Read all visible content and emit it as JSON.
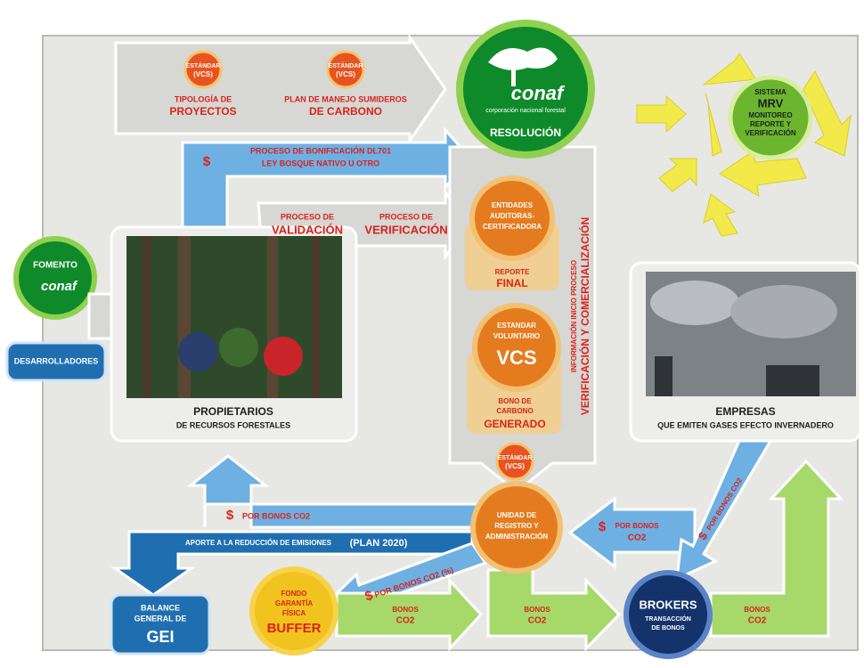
{
  "badges": [
    {
      "line1": "ESTÁNDAR",
      "line2": "(VCS)"
    },
    {
      "line1": "ESTÁNDAR",
      "line2": "(VCS)"
    },
    {
      "line1": "ESTÁNDAR",
      "line2": "(VCS)"
    }
  ],
  "top_arrow": {
    "item1": [
      "TIPOLOGÍA DE",
      "PROYECTOS"
    ],
    "item2": [
      "PLAN DE MANEJO SUMIDEROS",
      "DE CARBONO"
    ]
  },
  "conaf": {
    "logo": "conaf",
    "tagline": "corporación nacional forestal",
    "label": "RESOLUCIÓN"
  },
  "bonificacion": {
    "currency": "$",
    "lines": [
      "PROCESO DE BONIFICACIÓN DL701",
      "LEY BOSQUE NATIVO U OTRO"
    ]
  },
  "validacion": {
    "line1": "PROCESO DE",
    "line2": "VALIDACIÓN"
  },
  "verificacion": {
    "line1": "PROCESO DE",
    "line2": "VERIFICACIÓN"
  },
  "entidades": {
    "lines": [
      "ENTIDADES",
      "AUDITORAS-",
      "CERTIFICADORA"
    ],
    "report": [
      "REPORTE",
      "FINAL"
    ]
  },
  "vcs": {
    "lines": [
      "ESTANDAR",
      "VOLUNTARIO"
    ],
    "big": "VCS",
    "bono": [
      "BONO DE",
      "CARBONO"
    ],
    "generado": "GENERADO"
  },
  "vertical": [
    "INFORMACIÓN INICIO PROCESO",
    "VERIFICACIÓN Y COMERCIALIZACIÓN"
  ],
  "mrv": {
    "top": "SISTEMA",
    "big": "MRV",
    "sub": [
      "MONITOREO",
      "REPORTE Y",
      "VERIFICACIÓN"
    ]
  },
  "fomento": {
    "label": "FOMENTO",
    "logo": "conaf"
  },
  "desarrolladores": "DESARROLLADORES",
  "propietarios": {
    "title": "PROPIETARIOS",
    "subtitle": "DE RECURSOS FORESTALES"
  },
  "empresas": {
    "title": "EMPRESAS",
    "subtitle": "QUE EMITEN GASES EFECTO INVERNADERO"
  },
  "payments": [
    {
      "currency": "$",
      "label": "POR BONOS CO2"
    },
    {
      "currency": "$",
      "label": "POR BONOS CO2 (%)"
    },
    {
      "currency": "$",
      "label": "POR BONOS",
      "label2": "CO2"
    },
    {
      "currency": "$",
      "label": "POR BONOS CO2"
    }
  ],
  "aporte": {
    "text": "APORTE A LA REDUCCIÓN DE EMISIONES",
    "plan": "(PLAN 2020)"
  },
  "unidad": [
    "UNIDAD DE",
    "REGISTRO Y",
    "ADMINISTRACIÓN"
  ],
  "balance": {
    "lines": [
      "BALANCE",
      "GENERAL DE"
    ],
    "big": "GEI"
  },
  "buffer": {
    "lines": [
      "FONDO",
      "GARANTÍA",
      "FÍSICA"
    ],
    "big": "BUFFER"
  },
  "bonos": [
    [
      "BONOS",
      "CO2"
    ],
    [
      "BONOS",
      "CO2"
    ],
    [
      "BONOS",
      "CO2"
    ]
  ],
  "brokers": {
    "title": "BROKERS",
    "sub": [
      "TRANSACCIÓN",
      "DE BONOS"
    ]
  }
}
